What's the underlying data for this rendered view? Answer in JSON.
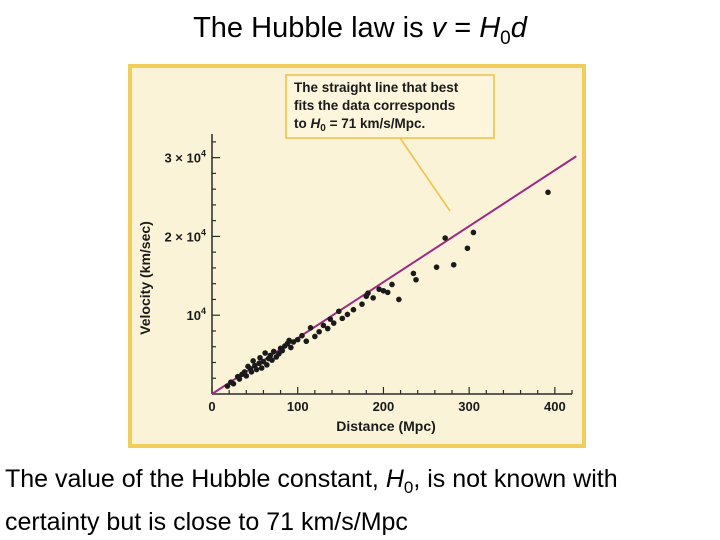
{
  "slide": {
    "title_prefix": "The Hubble law is ",
    "title_v": "v",
    "title_eq": " = ",
    "title_H": "H",
    "title_sub": "0",
    "title_d": "d",
    "caption_pre": "The value of the Hubble constant, ",
    "caption_H": "H",
    "caption_sub": "0",
    "caption_post": ", is not known with certainty but is close to 71 km/s/Mpc"
  },
  "colors": {
    "frame": "#f2cd5c",
    "panel": "#fbf3d8",
    "callout_bg": "#fdf5dc",
    "callout_border": "#f0c34a",
    "fit_line": "#9b2a86",
    "points": "#1a1a1a",
    "axes": "#2a2a2a"
  },
  "chart_data": {
    "type": "scatter",
    "xlabel": "Distance (Mpc)",
    "ylabel": "Velocity (km/sec)",
    "xlim": [
      0,
      420
    ],
    "ylim": [
      0,
      33000
    ],
    "x_ticks": [
      0,
      100,
      200,
      300,
      400
    ],
    "y_tick_labels": [
      {
        "value": 10000,
        "mantissa": "",
        "base": "10",
        "exp": "4"
      },
      {
        "value": 20000,
        "mantissa": "2 × ",
        "base": "10",
        "exp": "4"
      },
      {
        "value": 30000,
        "mantissa": "3 × ",
        "base": "10",
        "exp": "4"
      }
    ],
    "callout": {
      "line1": "The straight line that best",
      "line2": "fits the data corresponds",
      "line3_pre": "to ",
      "line3_H": "H",
      "line3_sub": "0",
      "line3_post": " = 71 km/s/Mpc."
    },
    "fit_line": {
      "slope": 71,
      "x_range": [
        0,
        425
      ]
    },
    "points": [
      [
        18,
        1000
      ],
      [
        22,
        1500
      ],
      [
        25,
        1300
      ],
      [
        30,
        2200
      ],
      [
        32,
        1900
      ],
      [
        35,
        2500
      ],
      [
        38,
        2800
      ],
      [
        40,
        2300
      ],
      [
        42,
        3500
      ],
      [
        45,
        3200
      ],
      [
        46,
        2800
      ],
      [
        48,
        4200
      ],
      [
        50,
        3600
      ],
      [
        52,
        3100
      ],
      [
        55,
        3900
      ],
      [
        56,
        4600
      ],
      [
        58,
        3300
      ],
      [
        60,
        4100
      ],
      [
        62,
        5200
      ],
      [
        64,
        3700
      ],
      [
        66,
        4500
      ],
      [
        68,
        4900
      ],
      [
        70,
        4300
      ],
      [
        72,
        5400
      ],
      [
        75,
        4700
      ],
      [
        78,
        5100
      ],
      [
        80,
        5800
      ],
      [
        82,
        5500
      ],
      [
        85,
        6100
      ],
      [
        88,
        6400
      ],
      [
        90,
        6800
      ],
      [
        92,
        5900
      ],
      [
        95,
        6600
      ],
      [
        100,
        6900
      ],
      [
        105,
        7400
      ],
      [
        110,
        6700
      ],
      [
        115,
        8400
      ],
      [
        120,
        7300
      ],
      [
        125,
        7900
      ],
      [
        130,
        8700
      ],
      [
        135,
        8300
      ],
      [
        138,
        9500
      ],
      [
        142,
        9000
      ],
      [
        148,
        10500
      ],
      [
        152,
        9600
      ],
      [
        158,
        10100
      ],
      [
        165,
        10700
      ],
      [
        175,
        11400
      ],
      [
        180,
        12400
      ],
      [
        182,
        12800
      ],
      [
        188,
        12200
      ],
      [
        195,
        13300
      ],
      [
        200,
        13100
      ],
      [
        205,
        12900
      ],
      [
        210,
        13900
      ],
      [
        218,
        12000
      ],
      [
        235,
        15300
      ],
      [
        238,
        14500
      ],
      [
        262,
        16100
      ],
      [
        282,
        16400
      ],
      [
        272,
        19800
      ],
      [
        298,
        18500
      ],
      [
        305,
        20500
      ],
      [
        392,
        25600
      ]
    ]
  }
}
